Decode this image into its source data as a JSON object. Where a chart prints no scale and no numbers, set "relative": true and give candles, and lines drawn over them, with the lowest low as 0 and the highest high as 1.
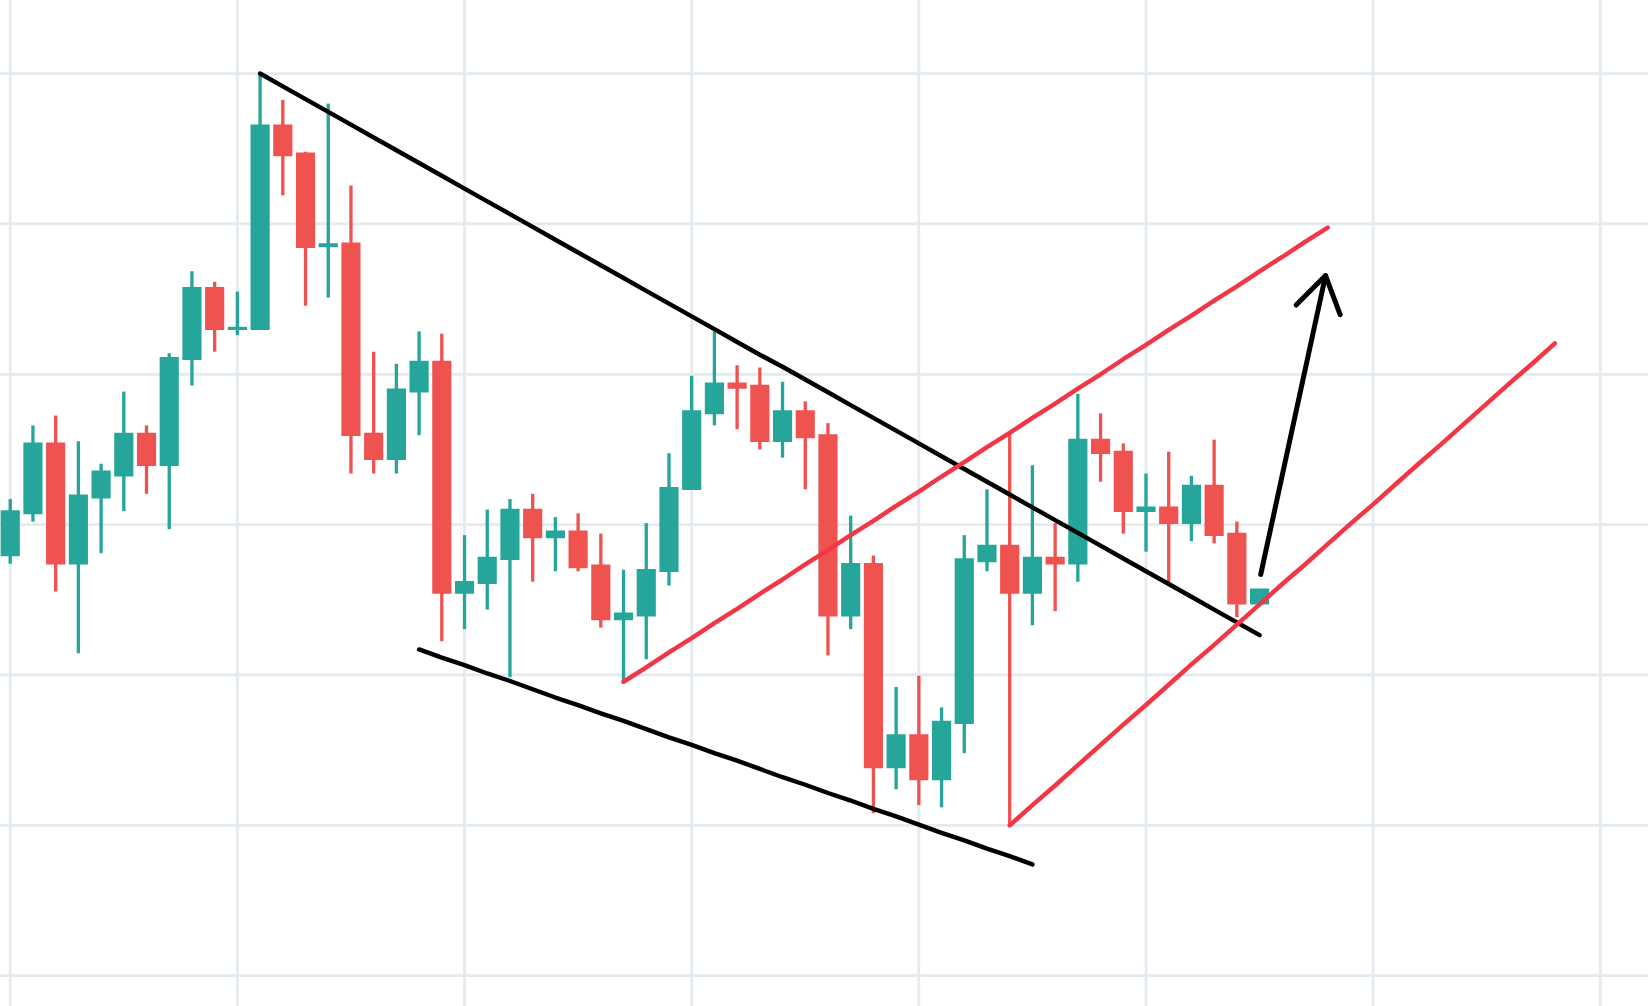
{
  "chart_data": {
    "type": "candlestick",
    "relative": true,
    "grid": true,
    "tick_labels": false,
    "categories": [
      null,
      null,
      null,
      null,
      null,
      null,
      null,
      null,
      null,
      null,
      null,
      null,
      null,
      null,
      null,
      null,
      null,
      null,
      null,
      null,
      null,
      null,
      null,
      null,
      null,
      null,
      null,
      null,
      null,
      null,
      null,
      null,
      null,
      null,
      null,
      null,
      null,
      null,
      null,
      null,
      null,
      null,
      null,
      null,
      null,
      null,
      null,
      null,
      null,
      null,
      null,
      null,
      null,
      null,
      null,
      null,
      null,
      null,
      null,
      null,
      null,
      null,
      null,
      null,
      null,
      null,
      null,
      null,
      null
    ],
    "ohlc": [
      [
        0.359,
        0.434,
        0.348,
        0.418
      ],
      [
        0.415,
        0.532,
        0.404,
        0.508
      ],
      [
        0.508,
        0.545,
        0.311,
        0.348
      ],
      [
        0.348,
        0.511,
        0.229,
        0.439
      ],
      [
        0.436,
        0.481,
        0.362,
        0.471
      ],
      [
        0.465,
        0.577,
        0.418,
        0.521
      ],
      [
        0.521,
        0.532,
        0.441,
        0.479
      ],
      [
        0.479,
        0.628,
        0.394,
        0.622
      ],
      [
        0.62,
        0.737,
        0.585,
        0.715
      ],
      [
        0.715,
        0.723,
        0.63,
        0.66
      ],
      [
        0.66,
        0.71,
        0.652,
        0.662
      ],
      [
        0.66,
        1.0,
        0.66,
        0.931
      ],
      [
        0.931,
        0.965,
        0.838,
        0.891
      ],
      [
        0.894,
        0.896,
        0.691,
        0.769
      ],
      [
        0.77,
        0.96,
        0.702,
        0.773
      ],
      [
        0.774,
        0.851,
        0.468,
        0.519
      ],
      [
        0.521,
        0.63,
        0.468,
        0.487
      ],
      [
        0.487,
        0.614,
        0.468,
        0.58
      ],
      [
        0.577,
        0.657,
        0.519,
        0.617
      ],
      [
        0.617,
        0.654,
        0.245,
        0.309
      ],
      [
        0.309,
        0.386,
        0.261,
        0.324
      ],
      [
        0.322,
        0.42,
        0.287,
        0.356
      ],
      [
        0.354,
        0.434,
        0.197,
        0.42
      ],
      [
        0.42,
        0.441,
        0.324,
        0.383
      ],
      [
        0.383,
        0.41,
        0.338,
        0.391
      ],
      [
        0.391,
        0.415,
        0.338,
        0.343
      ],
      [
        0.346,
        0.388,
        0.263,
        0.274
      ],
      [
        0.274,
        0.34,
        0.191,
        0.282
      ],
      [
        0.279,
        0.402,
        0.221,
        0.34
      ],
      [
        0.338,
        0.495,
        0.319,
        0.449
      ],
      [
        0.447,
        0.598,
        0.447,
        0.551
      ],
      [
        0.548,
        0.657,
        0.532,
        0.588
      ],
      [
        0.588,
        0.612,
        0.527,
        0.582
      ],
      [
        0.585,
        0.609,
        0.5,
        0.511
      ],
      [
        0.511,
        0.59,
        0.489,
        0.551
      ],
      [
        0.551,
        0.564,
        0.447,
        0.516
      ],
      [
        0.519,
        0.535,
        0.226,
        0.279
      ],
      [
        0.279,
        0.412,
        0.261,
        0.348
      ],
      [
        0.348,
        0.359,
        0.016,
        0.077
      ],
      [
        0.077,
        0.184,
        0.048,
        0.12
      ],
      [
        0.12,
        0.199,
        0.027,
        0.061
      ],
      [
        0.061,
        0.157,
        0.024,
        0.138
      ],
      [
        0.136,
        0.386,
        0.096,
        0.354
      ],
      [
        0.351,
        0.447,
        0.338,
        0.372
      ],
      [
        0.372,
        0.521,
        0.0,
        0.309
      ],
      [
        0.309,
        0.479,
        0.266,
        0.356
      ],
      [
        0.356,
        0.402,
        0.285,
        0.348
      ],
      [
        0.348,
        0.574,
        0.324,
        0.513
      ],
      [
        0.513,
        0.548,
        0.457,
        0.495
      ],
      [
        0.497,
        0.508,
        0.388,
        0.418
      ],
      [
        0.418,
        0.468,
        0.364,
        0.423
      ],
      [
        0.423,
        0.497,
        0.322,
        0.402
      ],
      [
        0.402,
        0.465,
        0.378,
        0.452
      ],
      [
        0.452,
        0.513,
        0.375,
        0.386
      ],
      [
        0.388,
        0.404,
        0.277,
        0.295
      ],
      [
        0.295,
        0.314,
        0.295,
        0.314
      ],
      null,
      null,
      null,
      null,
      null,
      null,
      null,
      null,
      null,
      null,
      null,
      null,
      null
    ],
    "colors": [
      "#26a69a",
      "#26a69a",
      "#ef5350",
      "#26a69a",
      "#26a69a",
      "#26a69a",
      "#ef5350",
      "#26a69a",
      "#26a69a",
      "#ef5350",
      "#26a69a",
      "#26a69a",
      "#ef5350",
      "#ef5350",
      "#26a69a",
      "#ef5350",
      "#ef5350",
      "#26a69a",
      "#26a69a",
      "#ef5350",
      "#26a69a",
      "#26a69a",
      "#26a69a",
      "#ef5350",
      "#26a69a",
      "#ef5350",
      "#ef5350",
      "#26a69a",
      "#26a69a",
      "#26a69a",
      "#26a69a",
      "#26a69a",
      "#ef5350",
      "#ef5350",
      "#26a69a",
      "#ef5350",
      "#ef5350",
      "#26a69a",
      "#ef5350",
      "#26a69a",
      "#ef5350",
      "#26a69a",
      "#26a69a",
      "#26a69a",
      "#ef5350",
      "#26a69a",
      "#ef5350",
      "#26a69a",
      "#ef5350",
      "#ef5350",
      "#26a69a",
      "#ef5350",
      "#26a69a",
      "#ef5350",
      "#ef5350",
      "#26a69a",
      null,
      null,
      null,
      null,
      null,
      null,
      null,
      null,
      null,
      null,
      null,
      null,
      null
    ],
    "series": [
      {
        "type": "line",
        "color": "#000000",
        "values": [
          null,
          null,
          null,
          null,
          null,
          null,
          null,
          null,
          null,
          null,
          null,
          1.0,
          0.983,
          0.966,
          0.949,
          0.932,
          0.915,
          0.898,
          0.881,
          0.864,
          0.847,
          0.83,
          0.813,
          0.796,
          0.779,
          0.762,
          0.745,
          0.728,
          0.711,
          0.694,
          0.677,
          0.66,
          0.643,
          0.626,
          0.61,
          0.593,
          0.576,
          0.559,
          0.542,
          0.525,
          0.508,
          0.491,
          0.474,
          0.457,
          0.44,
          0.423,
          0.406,
          0.389,
          0.372,
          0.355,
          0.338,
          0.321,
          0.304,
          0.287,
          0.27,
          0.253,
          null,
          null,
          null,
          null,
          null,
          null,
          null,
          null,
          null,
          null,
          null,
          null,
          null
        ]
      },
      {
        "type": "line",
        "color": "#000000",
        "values": [
          null,
          null,
          null,
          null,
          null,
          null,
          null,
          null,
          null,
          null,
          null,
          null,
          null,
          null,
          null,
          null,
          null,
          null,
          0.234,
          0.223,
          0.213,
          0.202,
          0.192,
          0.181,
          0.17,
          0.16,
          0.149,
          0.139,
          0.128,
          0.117,
          0.107,
          0.096,
          0.086,
          0.075,
          0.064,
          0.054,
          0.043,
          0.033,
          0.022,
          0.012,
          0.001,
          -0.01,
          -0.02,
          -0.031,
          -0.041,
          -0.052,
          null,
          null,
          null,
          null,
          null,
          null,
          null,
          null,
          null,
          null,
          null,
          null,
          null,
          null,
          null,
          null,
          null,
          null,
          null,
          null,
          null,
          null,
          null
        ]
      },
      {
        "type": "line",
        "color": "#f23645",
        "values": [
          null,
          null,
          null,
          null,
          null,
          null,
          null,
          null,
          null,
          null,
          null,
          null,
          null,
          null,
          null,
          null,
          null,
          null,
          null,
          null,
          null,
          null,
          null,
          null,
          null,
          null,
          null,
          0.191,
          0.21,
          0.23,
          0.249,
          0.269,
          0.288,
          0.308,
          0.327,
          0.347,
          0.366,
          0.386,
          0.405,
          0.425,
          0.444,
          0.464,
          0.483,
          0.503,
          0.522,
          0.542,
          0.561,
          0.581,
          0.6,
          0.62,
          0.639,
          0.659,
          0.678,
          0.698,
          0.717,
          0.737,
          0.756,
          0.776,
          0.795,
          null,
          null,
          null,
          null,
          null,
          null,
          null,
          null,
          null,
          null
        ]
      },
      {
        "type": "line",
        "color": "#f23645",
        "values": [
          null,
          null,
          null,
          null,
          null,
          null,
          null,
          null,
          null,
          null,
          null,
          null,
          null,
          null,
          null,
          null,
          null,
          null,
          null,
          null,
          null,
          null,
          null,
          null,
          null,
          null,
          null,
          null,
          null,
          null,
          null,
          null,
          null,
          null,
          null,
          null,
          null,
          null,
          null,
          null,
          null,
          null,
          null,
          null,
          0.0,
          0.027,
          0.053,
          0.08,
          0.107,
          0.134,
          0.16,
          0.187,
          0.214,
          0.24,
          0.267,
          0.294,
          0.321,
          0.347,
          0.374,
          0.401,
          0.427,
          0.454,
          0.481,
          0.507,
          0.534,
          0.561,
          0.588,
          0.614,
          0.641
        ]
      }
    ]
  }
}
